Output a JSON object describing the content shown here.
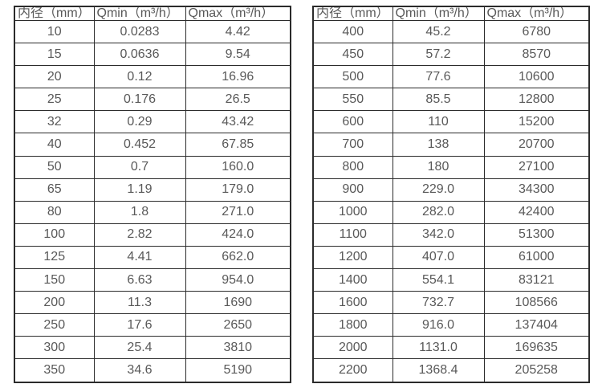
{
  "colors": {
    "text": "#595959",
    "border": "#2b2b2b",
    "background": "#ffffff"
  },
  "tables": [
    {
      "name": "flow-spec-table-small-diameters",
      "headers": [
        "内径（mm）",
        "Qmin（m³/h）",
        "Qmax（m³/h）"
      ],
      "rows": [
        [
          "10",
          "0.0283",
          "4.42"
        ],
        [
          "15",
          "0.0636",
          "9.54"
        ],
        [
          "20",
          "0.12",
          "16.96"
        ],
        [
          "25",
          "0.176",
          "26.5"
        ],
        [
          "32",
          "0.29",
          "43.42"
        ],
        [
          "40",
          "0.452",
          "67.85"
        ],
        [
          "50",
          "0.7",
          "160.0"
        ],
        [
          "65",
          "1.19",
          "179.0"
        ],
        [
          "80",
          "1.8",
          "271.0"
        ],
        [
          "100",
          "2.82",
          "424.0"
        ],
        [
          "125",
          "4.41",
          "662.0"
        ],
        [
          "150",
          "6.63",
          "954.0"
        ],
        [
          "200",
          "11.3",
          "1690"
        ],
        [
          "250",
          "17.6",
          "2650"
        ],
        [
          "300",
          "25.4",
          "3810"
        ],
        [
          "350",
          "34.6",
          "5190"
        ]
      ]
    },
    {
      "name": "flow-spec-table-large-diameters",
      "headers": [
        "内径（mm）",
        "Qmin（m³/h）",
        "Qmax（m³/h）"
      ],
      "rows": [
        [
          "400",
          "45.2",
          "6780"
        ],
        [
          "450",
          "57.2",
          "8570"
        ],
        [
          "500",
          "77.6",
          "10600"
        ],
        [
          "550",
          "85.5",
          "12800"
        ],
        [
          "600",
          "110",
          "15200"
        ],
        [
          "700",
          "138",
          "20700"
        ],
        [
          "800",
          "180",
          "27100"
        ],
        [
          "900",
          "229.0",
          "34300"
        ],
        [
          "1000",
          "282.0",
          "42400"
        ],
        [
          "1100",
          "342.0",
          "51300"
        ],
        [
          "1200",
          "407.0",
          "61000"
        ],
        [
          "1400",
          "554.1",
          "83121"
        ],
        [
          "1600",
          "732.7",
          "108566"
        ],
        [
          "1800",
          "916.0",
          "137404"
        ],
        [
          "2000",
          "1131.0",
          "169635"
        ],
        [
          "2200",
          "1368.4",
          "205258"
        ]
      ]
    }
  ]
}
